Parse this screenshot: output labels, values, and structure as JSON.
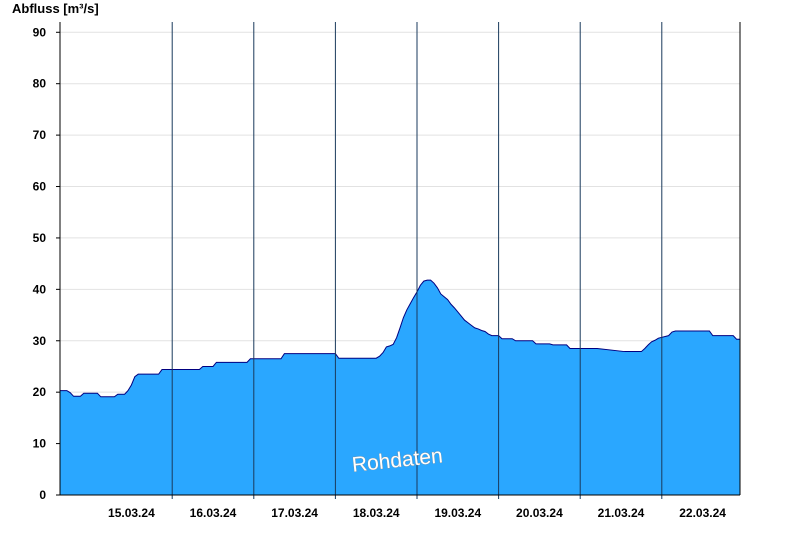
{
  "chart_data": {
    "type": "area",
    "title": "",
    "ylabel": "Abfluss [m³/s]",
    "xlabel": "",
    "ylim": [
      0,
      92
    ],
    "xlim": [
      "2024-03-14T15:00",
      "2024-03-22T23:00"
    ],
    "y_ticks": [
      0,
      10,
      20,
      30,
      40,
      50,
      60,
      70,
      80,
      90
    ],
    "x_ticks": [
      {
        "label": "15.03.24",
        "at": "2024-03-15T12:00"
      },
      {
        "label": "16.03.24",
        "at": "2024-03-16T12:00"
      },
      {
        "label": "17.03.24",
        "at": "2024-03-17T12:00"
      },
      {
        "label": "18.03.24",
        "at": "2024-03-18T12:00"
      },
      {
        "label": "19.03.24",
        "at": "2024-03-19T12:00"
      },
      {
        "label": "20.03.24",
        "at": "2024-03-20T12:00"
      },
      {
        "label": "21.03.24",
        "at": "2024-03-21T12:00"
      },
      {
        "label": "22.03.24",
        "at": "2024-03-22T12:00"
      }
    ],
    "day_separators": [
      "2024-03-16T00:00",
      "2024-03-17T00:00",
      "2024-03-18T00:00",
      "2024-03-19T00:00",
      "2024-03-20T00:00",
      "2024-03-21T00:00",
      "2024-03-22T00:00"
    ],
    "annotation": "Rohdaten",
    "grid": true,
    "fill_color": "#2aa7ff",
    "line_color": "#000080",
    "series": [
      {
        "x": [
          "2024-03-14T15:00",
          "2024-03-14T17:00",
          "2024-03-14T18:00",
          "2024-03-14T19:00",
          "2024-03-14T21:00",
          "2024-03-14T22:00",
          "2024-03-15T02:00",
          "2024-03-15T03:00",
          "2024-03-15T07:00",
          "2024-03-15T08:00",
          "2024-03-15T10:00",
          "2024-03-15T11:00",
          "2024-03-15T12:00",
          "2024-03-15T13:00",
          "2024-03-15T14:00",
          "2024-03-15T15:00",
          "2024-03-15T16:00",
          "2024-03-15T17:00",
          "2024-03-15T18:00",
          "2024-03-15T19:00",
          "2024-03-15T20:00",
          "2024-03-15T21:00",
          "2024-03-15T22:00",
          "2024-03-16T00:00",
          "2024-03-16T02:00",
          "2024-03-16T03:00",
          "2024-03-16T08:00",
          "2024-03-16T09:00",
          "2024-03-16T12:00",
          "2024-03-16T13:00",
          "2024-03-16T17:00",
          "2024-03-16T18:00",
          "2024-03-16T22:00",
          "2024-03-16T23:00",
          "2024-03-17T08:00",
          "2024-03-17T09:00",
          "2024-03-17T17:00",
          "2024-03-17T18:00",
          "2024-03-18T00:00",
          "2024-03-18T01:00",
          "2024-03-18T12:00",
          "2024-03-18T13:00",
          "2024-03-18T14:00",
          "2024-03-18T15:00",
          "2024-03-18T16:00",
          "2024-03-18T17:00",
          "2024-03-18T18:00",
          "2024-03-18T19:00",
          "2024-03-18T20:00",
          "2024-03-18T21:00",
          "2024-03-18T22:00",
          "2024-03-18T23:00",
          "2024-03-19T00:00",
          "2024-03-19T01:00",
          "2024-03-19T02:00",
          "2024-03-19T03:00",
          "2024-03-19T04:00",
          "2024-03-19T05:00",
          "2024-03-19T06:00",
          "2024-03-19T07:00",
          "2024-03-19T09:00",
          "2024-03-19T10:00",
          "2024-03-19T11:00",
          "2024-03-19T12:00",
          "2024-03-19T13:00",
          "2024-03-19T14:00",
          "2024-03-19T15:00",
          "2024-03-19T16:00",
          "2024-03-19T17:00",
          "2024-03-19T18:00",
          "2024-03-19T19:00",
          "2024-03-19T20:00",
          "2024-03-19T21:00",
          "2024-03-19T22:00",
          "2024-03-20T00:00",
          "2024-03-20T01:00",
          "2024-03-20T04:00",
          "2024-03-20T05:00",
          "2024-03-20T10:00",
          "2024-03-20T11:00",
          "2024-03-20T15:00",
          "2024-03-20T16:00",
          "2024-03-20T20:00",
          "2024-03-20T21:00",
          "2024-03-21T04:00",
          "2024-03-21T05:00",
          "2024-03-21T13:00",
          "2024-03-21T14:00",
          "2024-03-21T18:00",
          "2024-03-21T19:00",
          "2024-03-21T20:00",
          "2024-03-21T21:00",
          "2024-03-21T22:00",
          "2024-03-21T23:00",
          "2024-03-22T02:00",
          "2024-03-22T03:00",
          "2024-03-22T04:00",
          "2024-03-22T05:00",
          "2024-03-22T14:00",
          "2024-03-22T15:00",
          "2024-03-22T21:00",
          "2024-03-22T22:00",
          "2024-03-22T23:00"
        ],
        "y": [
          20.3,
          20.3,
          19.9,
          19.2,
          19.2,
          19.8,
          19.8,
          19.1,
          19.1,
          19.6,
          19.6,
          20.3,
          21.4,
          23.0,
          23.5,
          23.5,
          23.5,
          23.5,
          23.5,
          23.5,
          23.5,
          24.4,
          24.4,
          24.4,
          24.4,
          24.4,
          24.4,
          25.0,
          25.0,
          25.8,
          25.8,
          25.8,
          25.8,
          26.5,
          26.5,
          27.5,
          27.5,
          27.5,
          27.5,
          26.6,
          26.6,
          27.0,
          27.7,
          28.8,
          29.0,
          29.3,
          30.6,
          32.5,
          34.5,
          36.0,
          37.2,
          38.4,
          39.5,
          40.8,
          41.6,
          41.8,
          41.8,
          41.2,
          40.3,
          39.1,
          38.0,
          37.1,
          36.4,
          35.6,
          34.8,
          34.0,
          33.5,
          33.0,
          32.5,
          32.3,
          32.0,
          31.8,
          31.3,
          31.0,
          31.0,
          30.4,
          30.4,
          30.0,
          30.0,
          29.4,
          29.4,
          29.2,
          29.2,
          28.5,
          28.5,
          28.5,
          27.9,
          27.9,
          27.9,
          28.5,
          29.2,
          29.8,
          30.1,
          30.5,
          31.0,
          31.7,
          31.9,
          31.9,
          31.9,
          31.0,
          31.0,
          30.3,
          30.3
        ]
      }
    ]
  }
}
